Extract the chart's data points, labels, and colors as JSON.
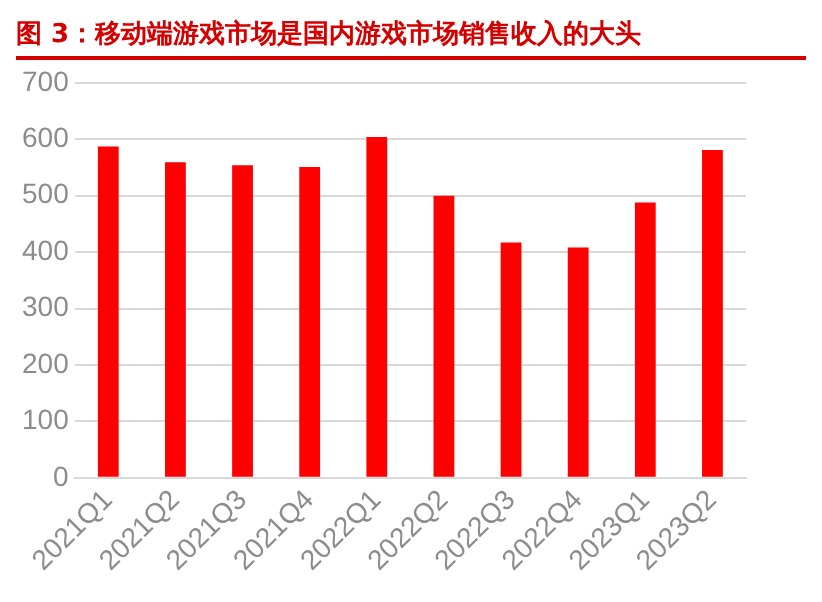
{
  "chart_data": {
    "type": "bar",
    "title": "图 3：移动端游戏市场是国内游戏市场销售收入的大头",
    "categories": [
      "2021Q1",
      "2021Q2",
      "2021Q3",
      "2021Q4",
      "2022Q1",
      "2022Q2",
      "2022Q3",
      "2022Q4",
      "2023Q1",
      "2023Q2"
    ],
    "values": [
      587,
      559,
      554,
      551,
      604,
      500,
      417,
      408,
      488,
      581
    ],
    "color": "#ff0000",
    "ylim": [
      0,
      700
    ],
    "yticks": [
      0,
      100,
      200,
      300,
      400,
      500,
      600,
      700
    ],
    "grid": "y",
    "legend": false
  }
}
